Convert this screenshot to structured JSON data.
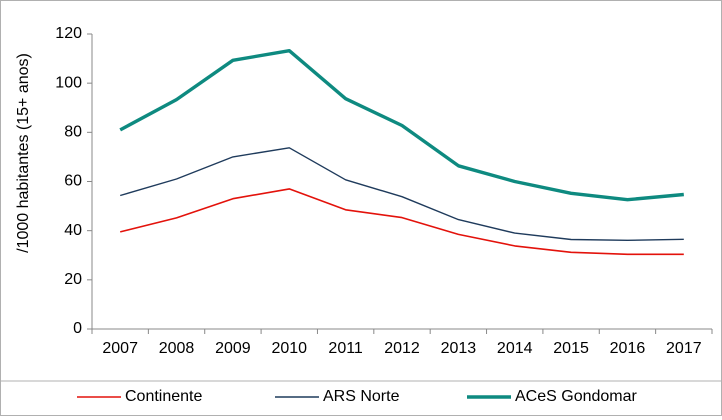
{
  "chart_data": {
    "type": "line",
    "title": "",
    "xlabel": "",
    "ylabel": "/1000 habitantes (15+ anos)",
    "categories": [
      "2007",
      "2008",
      "2009",
      "2010",
      "2011",
      "2012",
      "2013",
      "2014",
      "2015",
      "2016",
      "2017"
    ],
    "ylim": [
      0,
      120
    ],
    "yticks": [
      "0",
      "20",
      "40",
      "60",
      "80",
      "100",
      "120"
    ],
    "grid": false,
    "legend_position": "bottom",
    "series": [
      {
        "name": "Continente",
        "color": "#e3120b",
        "values": [
          39.5,
          45.2,
          53.0,
          57.0,
          48.5,
          45.3,
          38.5,
          33.8,
          31.2,
          30.4,
          30.4
        ]
      },
      {
        "name": "ARS Norte",
        "color": "#1f3b5c",
        "values": [
          54.3,
          61.0,
          70.0,
          73.7,
          60.7,
          53.8,
          44.5,
          39.0,
          36.4,
          36.1,
          36.5
        ]
      },
      {
        "name": "ACeS Gondomar",
        "color": "#0e8a80",
        "values": [
          81.0,
          93.3,
          109.3,
          113.2,
          93.7,
          82.8,
          66.4,
          60.0,
          55.2,
          52.6,
          54.7
        ]
      }
    ]
  }
}
